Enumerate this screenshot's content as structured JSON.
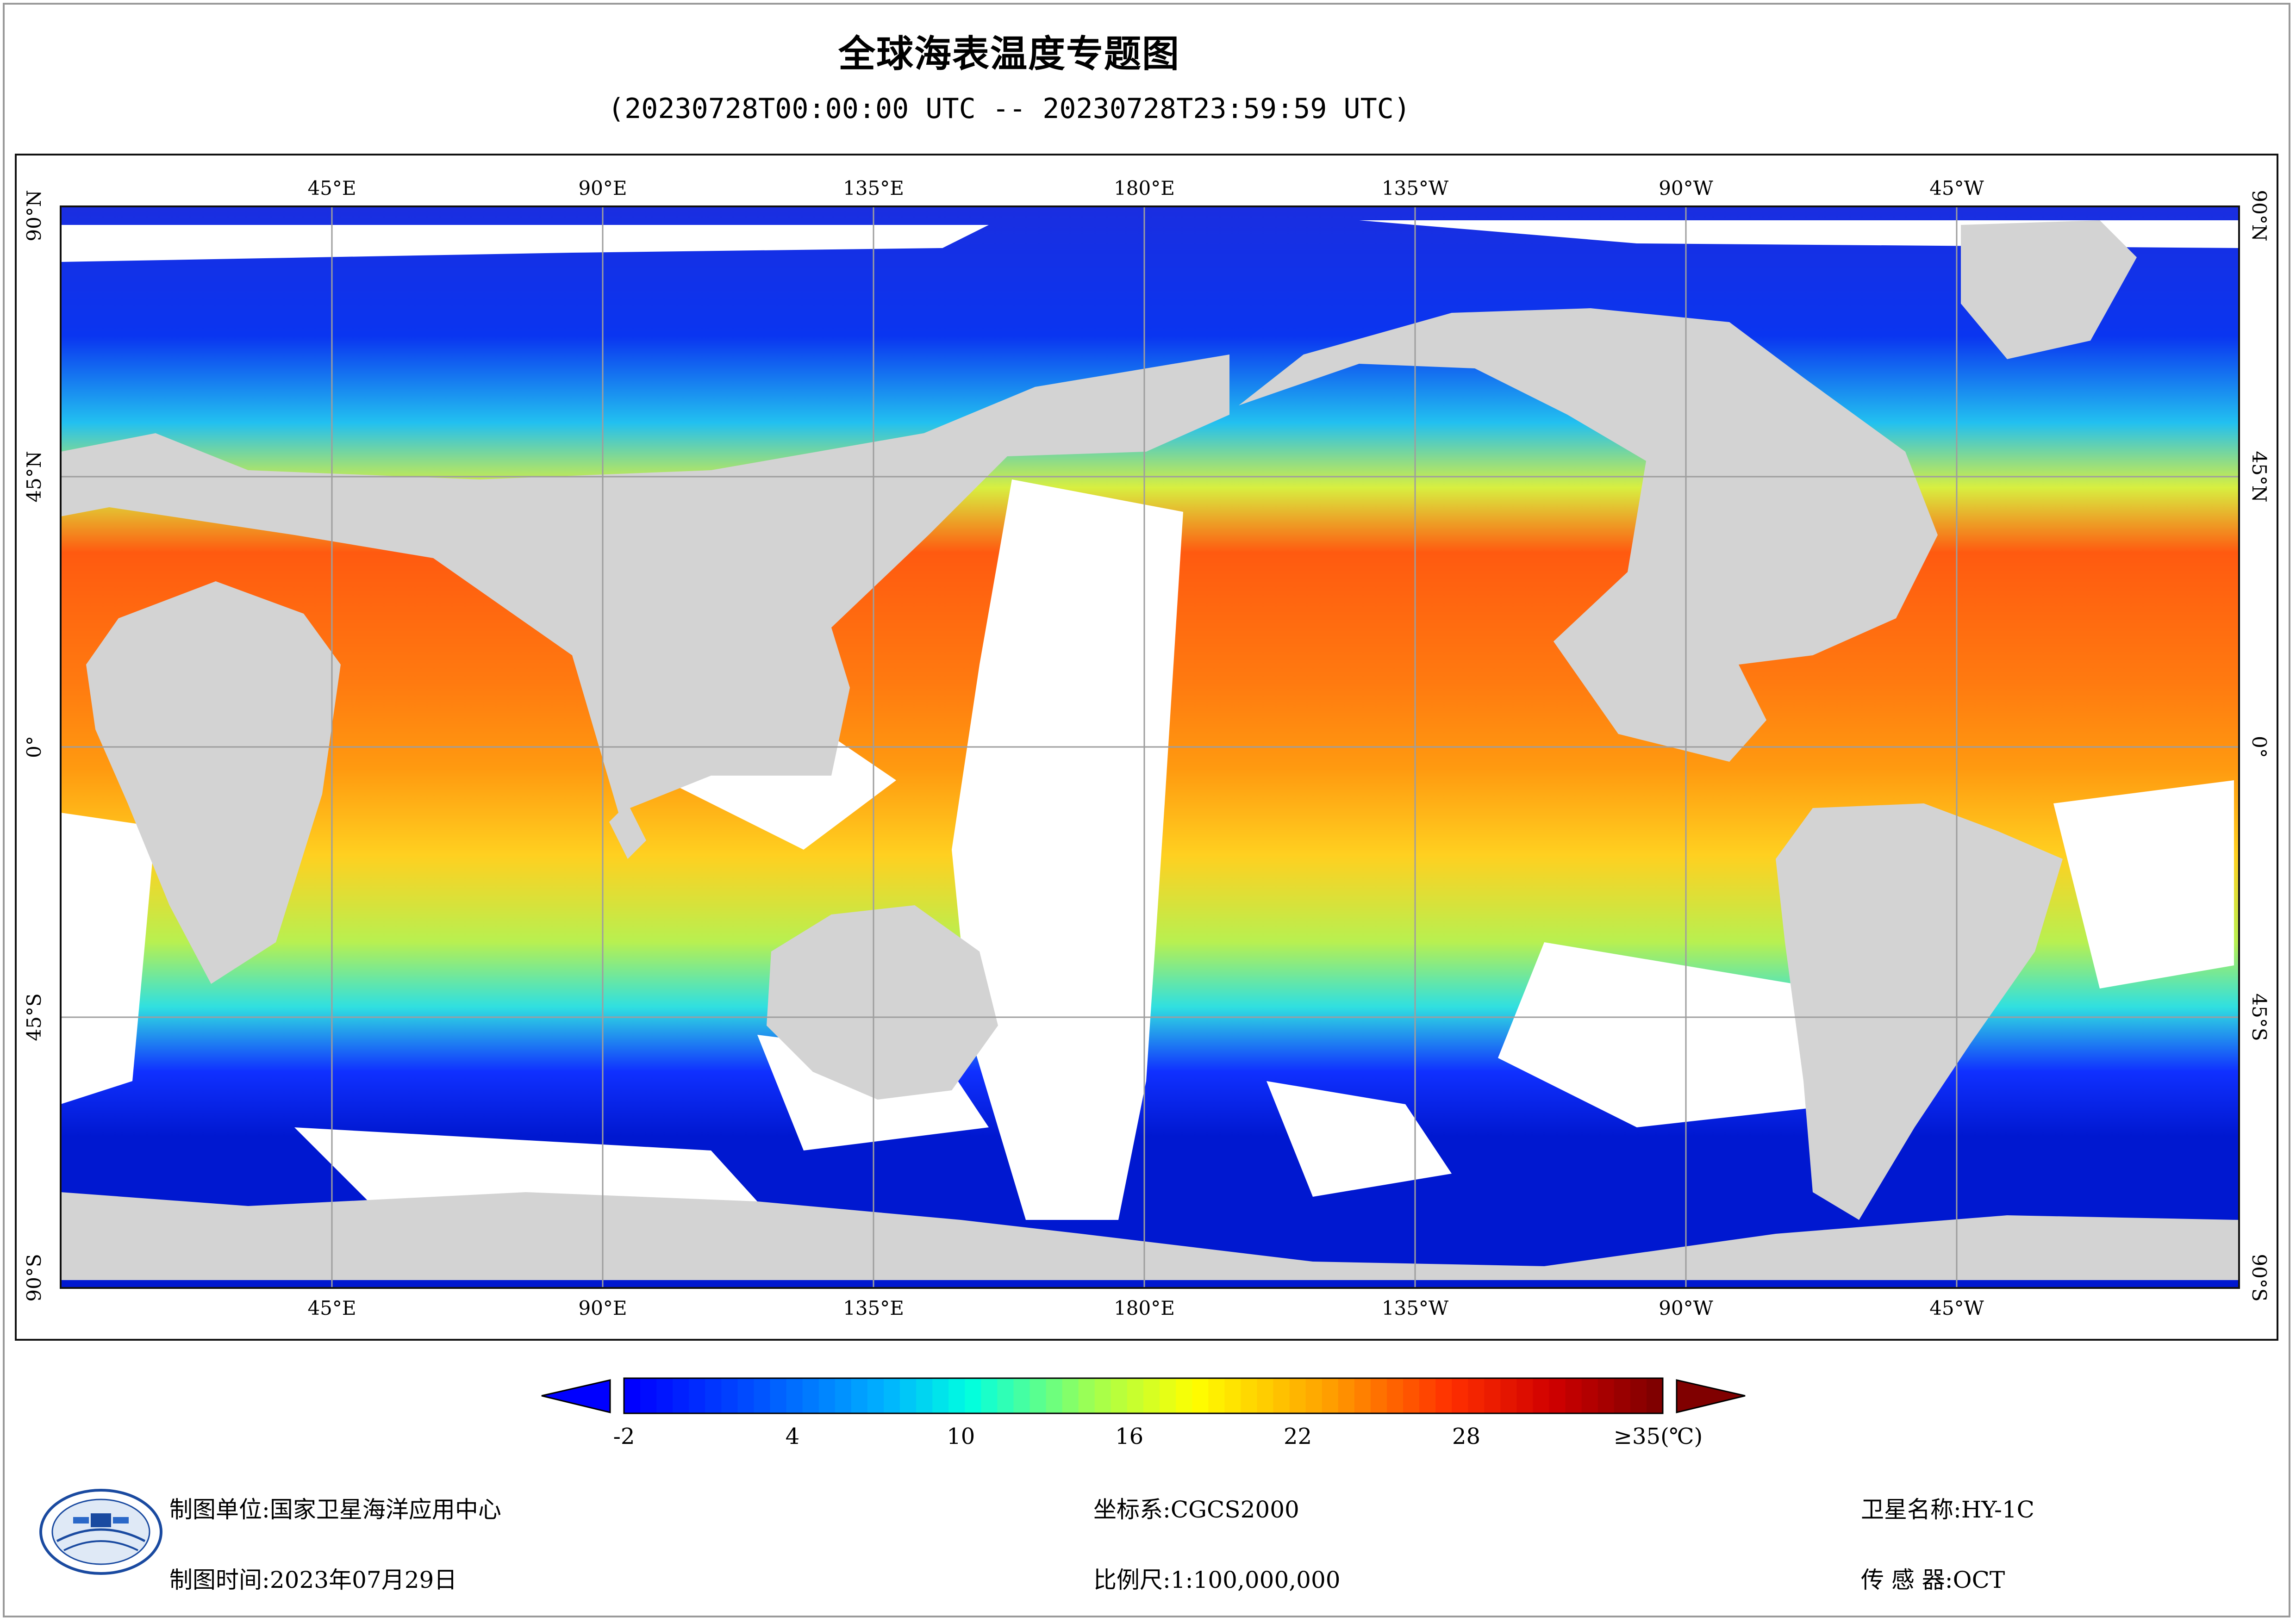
{
  "title": "全球海表温度专题图",
  "subtitle": "(20230728T00:00:00 UTC -- 20230728T23:59:59 UTC)",
  "map": {
    "top_lon_labels": [
      "45°E",
      "90°E",
      "135°E",
      "180°E",
      "135°W",
      "90°W",
      "45°W"
    ],
    "bottom_lon_labels": [
      "45°E",
      "90°E",
      "135°E",
      "180°E",
      "135°W",
      "90°W",
      "45°W"
    ],
    "lat_labels": [
      "90°N",
      "45°N",
      "0°",
      "45°S",
      "90°S"
    ],
    "colors": {
      "land": "#d3d3d3",
      "no_data": "#ffffff",
      "grid": "#9e9e9e"
    }
  },
  "colorbar": {
    "ticks": [
      "-2",
      "4",
      "10",
      "16",
      "22",
      "28",
      "≥35(℃)"
    ],
    "min": -2,
    "max": 35,
    "under_color": "#0000ff",
    "over_color": "#800000"
  },
  "footer": {
    "org_label": "制图单位:",
    "org_value": "国家卫星海洋应用中心",
    "date_label": "制图时间:",
    "date_value": "2023年07月29日",
    "crs_label": "坐标系:",
    "crs_value": "CGCS2000",
    "scale_label": "比例尺:",
    "scale_value": "1:100,000,000",
    "satellite_label": "卫星名称:",
    "satellite_value": "HY-1C",
    "sensor_label": "传 感 器:",
    "sensor_value": "OCT"
  }
}
